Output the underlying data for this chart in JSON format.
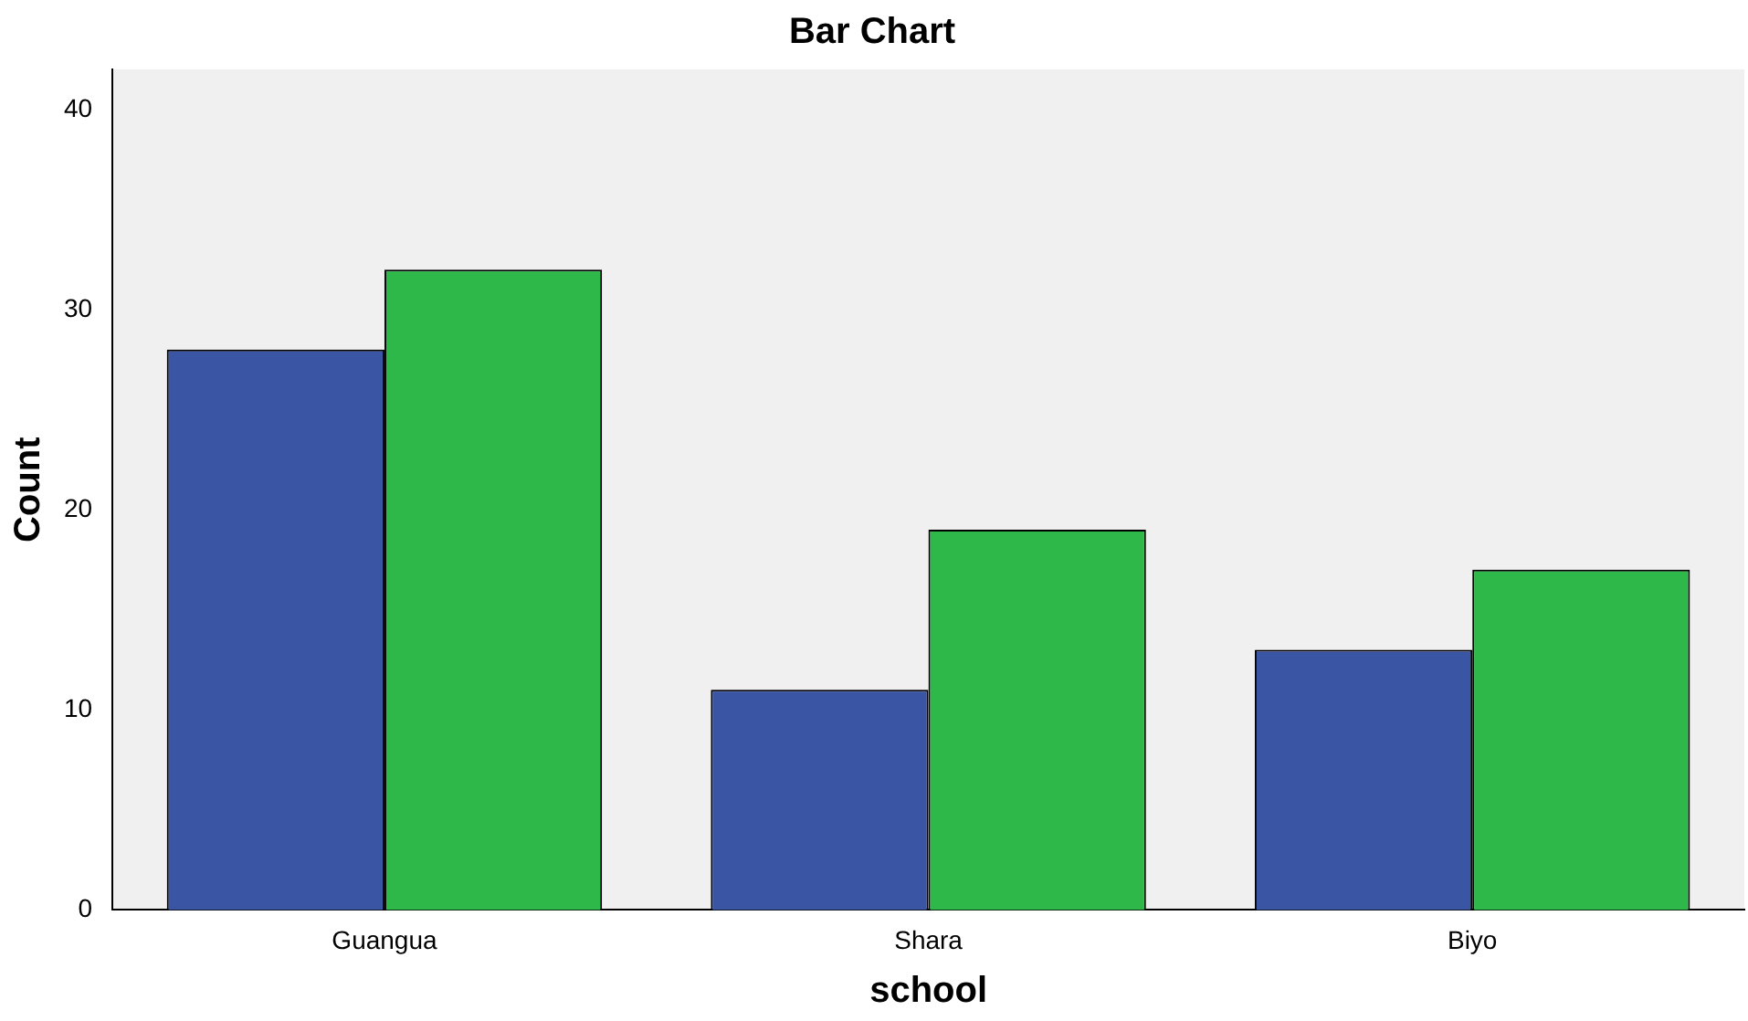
{
  "chart_data": {
    "type": "bar",
    "title": "Bar Chart",
    "xlabel": "school",
    "ylabel": "Count",
    "categories": [
      "Guangua",
      "Shara",
      "Biyo"
    ],
    "series": [
      {
        "color": "#3a55a4",
        "values": [
          28,
          11,
          13
        ]
      },
      {
        "color": "#2eb84a",
        "values": [
          32,
          19,
          17
        ]
      }
    ],
    "ylim": [
      0,
      42
    ],
    "yticks": [
      0,
      10,
      20,
      30,
      40
    ],
    "grid": false,
    "legend": false
  }
}
